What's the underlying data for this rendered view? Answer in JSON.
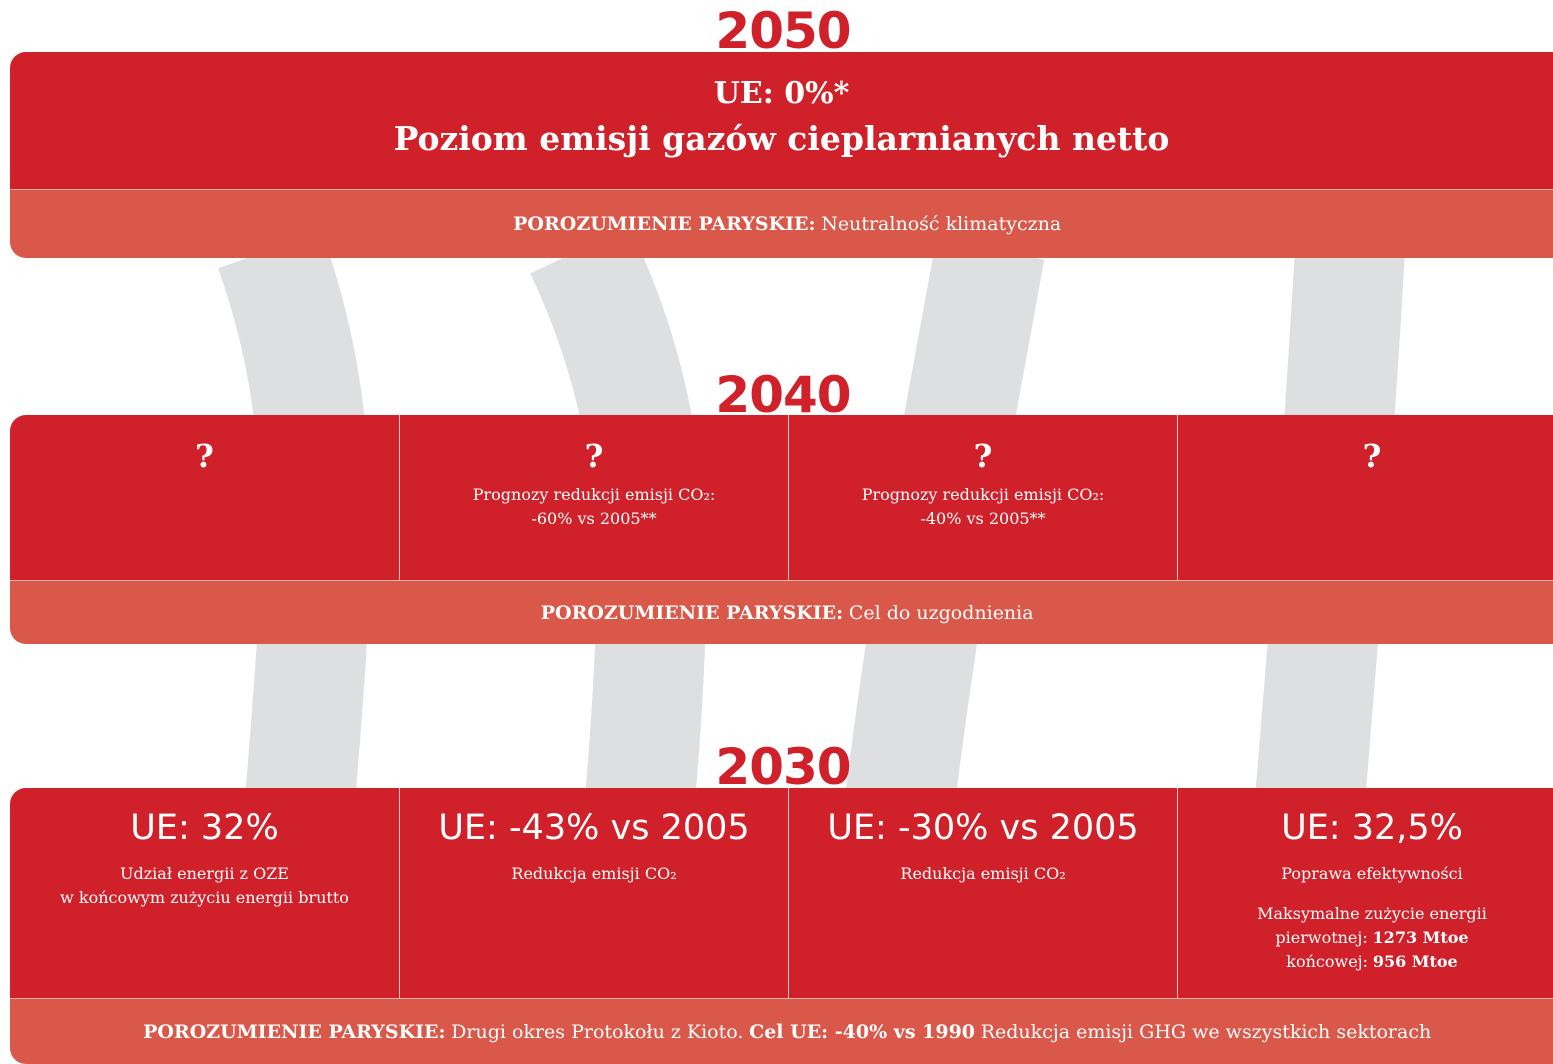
{
  "sections": [
    {
      "year": "2050",
      "cells": [
        {
          "heading": "UE: 0%*",
          "subheading": "Poziom emisji gazów cieplarnianych netto"
        }
      ],
      "footer": [
        {
          "text": "POROZUMIENIE PARYSKIE:",
          "bold": true
        },
        {
          "text": "Neutralność klimatyczna",
          "bold": false
        }
      ]
    },
    {
      "year": "2040",
      "cells": [
        {
          "heading": "?"
        },
        {
          "heading": "?",
          "lines": [
            "Prognozy redukcji emisji CO₂:",
            "-60% vs 2005**"
          ]
        },
        {
          "heading": "?",
          "lines": [
            "Prognozy redukcji emisji CO₂:",
            "-40% vs 2005**"
          ]
        },
        {
          "heading": "?"
        }
      ],
      "footer": [
        {
          "text": "POROZUMIENIE PARYSKIE:",
          "bold": true
        },
        {
          "text": "Cel do uzgodnienia",
          "bold": false
        }
      ]
    },
    {
      "year": "2030",
      "cells": [
        {
          "heading": "UE: 32%",
          "lines": [
            "Udział energii z OZE",
            "w końcowym zużyciu energii brutto"
          ]
        },
        {
          "heading": "UE: -43% vs 2005",
          "lines": [
            "Redukcja emisji CO₂"
          ]
        },
        {
          "heading": "UE: -30% vs 2005",
          "lines": [
            "Redukcja emisji CO₂"
          ]
        },
        {
          "heading": "UE: 32,5%",
          "lines": [
            "Poprawa efektywności"
          ],
          "details": [
            {
              "label": "Maksymalne zużycie energii"
            },
            {
              "label": "pierwotnej:",
              "value": "1273 Mtoe"
            },
            {
              "label": "końcowej:",
              "value": "956 Mtoe"
            }
          ]
        }
      ],
      "footer": [
        {
          "text": "POROZUMIENIE PARYSKIE:",
          "bold": true
        },
        {
          "text": "Drugi okres Protokołu z Kioto.",
          "bold": false
        },
        {
          "text": "Cel UE: -40% vs 1990",
          "bold": true
        },
        {
          "text": "Redukcja emisji GHG we wszystkich sektorach",
          "bold": false
        }
      ]
    }
  ]
}
